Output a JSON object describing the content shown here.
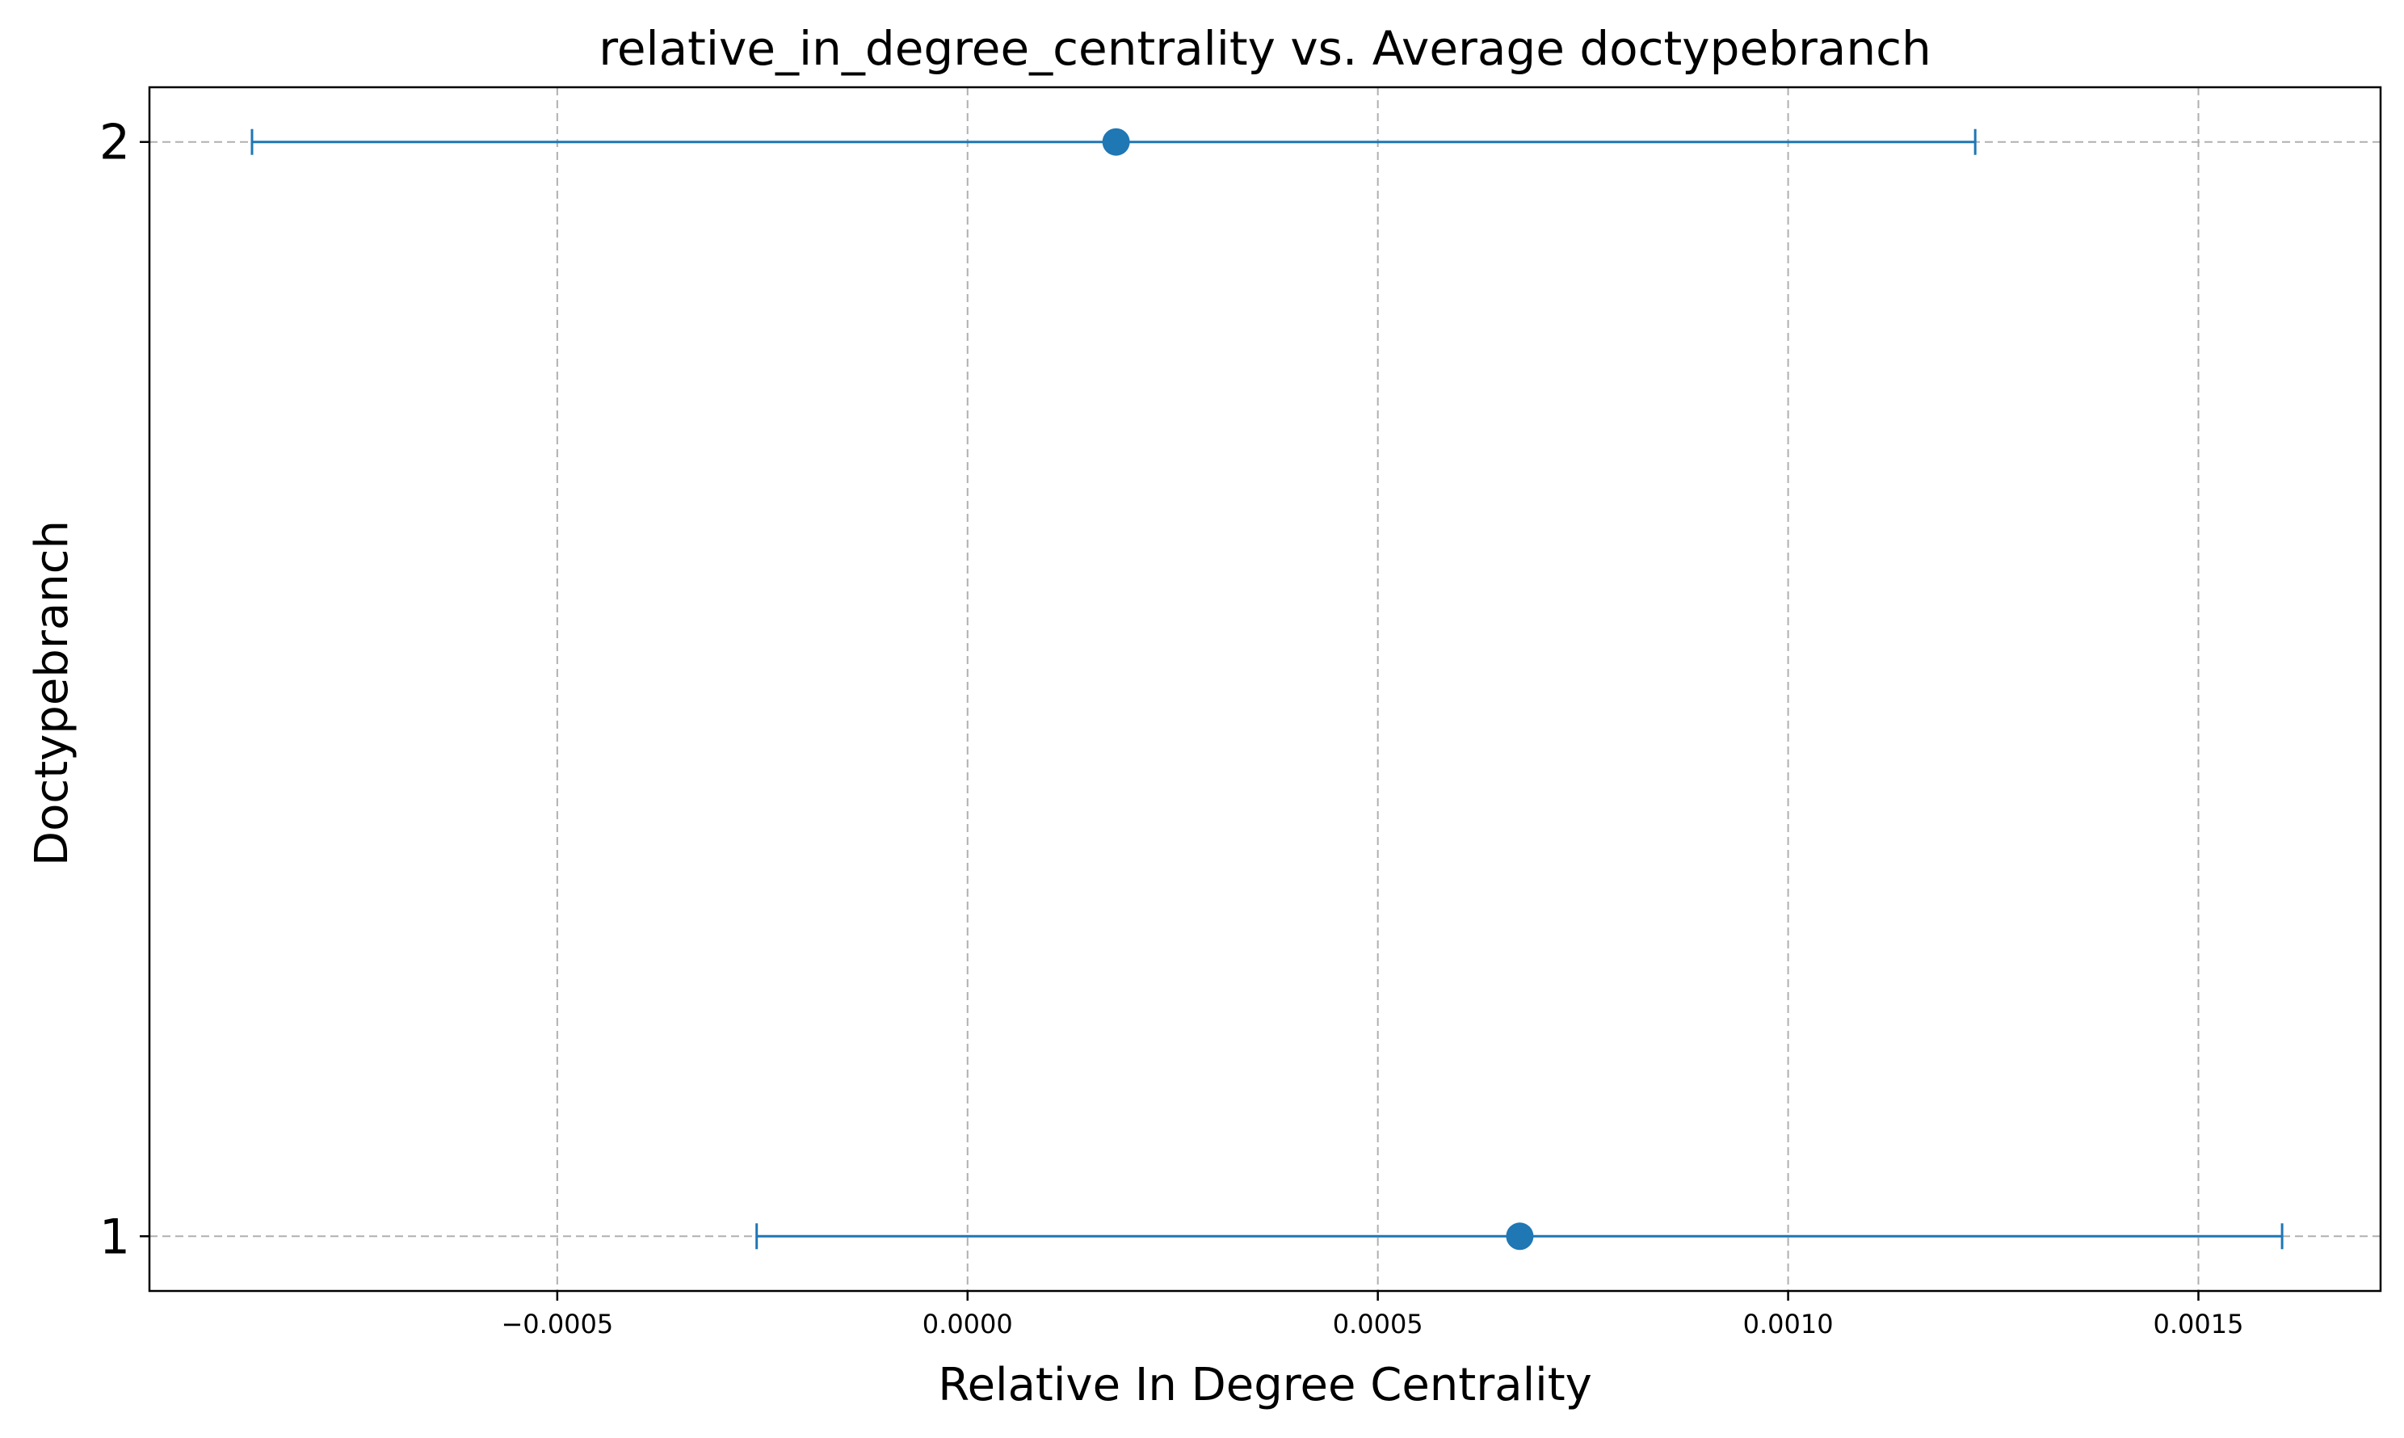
{
  "chart_data": {
    "type": "errorbar",
    "title": "relative_in_degree_centrality vs. Average doctypebranch",
    "xlabel": "Relative In Degree Centrality",
    "ylabel": "Doctypebranch",
    "xlim": [
      -0.000997,
      0.001722
    ],
    "ylim": [
      0.95,
      2.05
    ],
    "grid": true,
    "x_ticks": [
      -0.0005,
      0.0,
      0.0005,
      0.001,
      0.0015
    ],
    "x_tick_labels": [
      "−0.0005",
      "0.0000",
      "0.0005",
      "0.0010",
      "0.0015"
    ],
    "y_ticks": [
      1,
      2
    ],
    "y_tick_labels": [
      "1",
      "2"
    ],
    "color": "#1f77b4",
    "points": [
      {
        "category": "2",
        "y": 2,
        "mean": 0.000181,
        "lower": -0.000872,
        "upper": 0.001228
      },
      {
        "category": "1",
        "y": 1,
        "mean": 0.000673,
        "lower": -0.000257,
        "upper": 0.001602
      }
    ]
  }
}
